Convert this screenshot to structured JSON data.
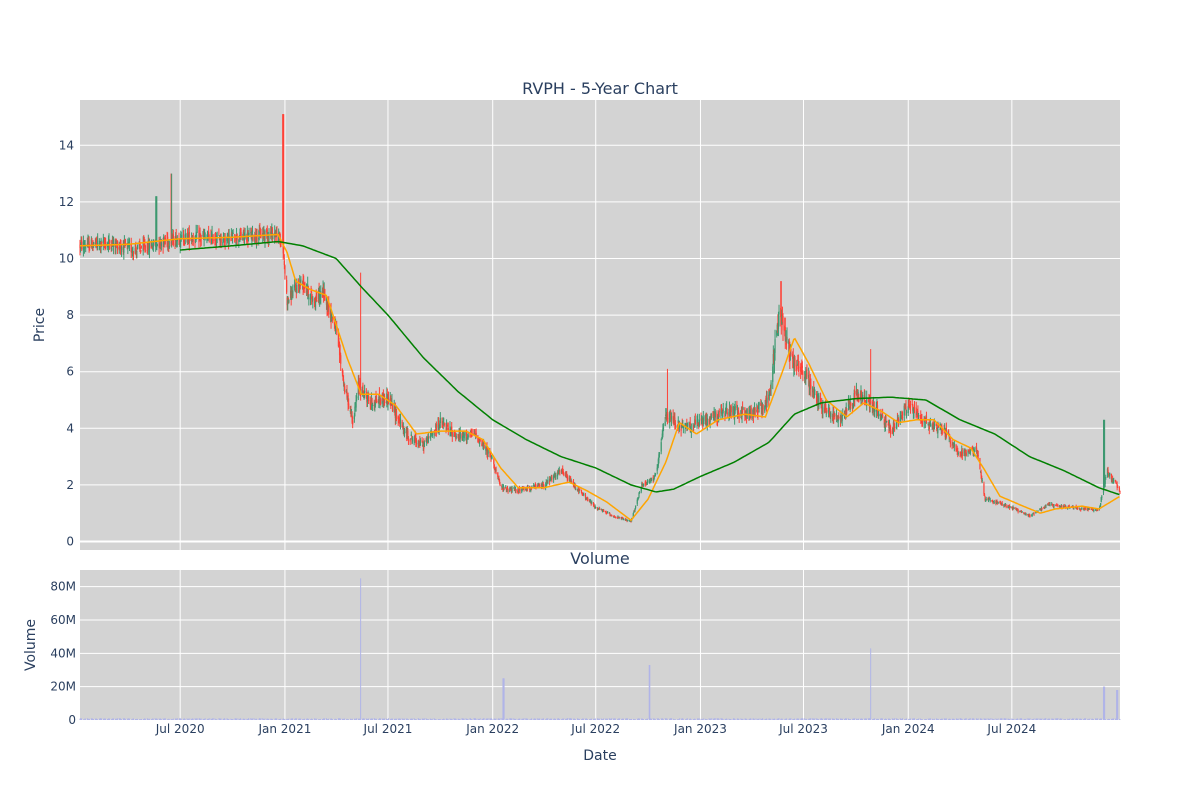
{
  "chart_data": [
    {
      "type": "candlestick",
      "title": "RVPH - 5-Year Chart",
      "ylabel": "Price",
      "ylim": [
        -0.3,
        15.6
      ],
      "yticks": [
        0,
        2,
        4,
        6,
        8,
        10,
        12,
        14
      ],
      "xlim": [
        "2020-01-07",
        "2025-01-07"
      ],
      "xticks": [
        {
          "date": "2020-07-01",
          "label": "Jul 2020"
        },
        {
          "date": "2021-01-01",
          "label": "Jan 2021"
        },
        {
          "date": "2021-07-01",
          "label": "Jul 2021"
        },
        {
          "date": "2022-01-01",
          "label": "Jan 2022"
        },
        {
          "date": "2022-07-01",
          "label": "Jul 2022"
        },
        {
          "date": "2023-01-01",
          "label": "Jan 2023"
        },
        {
          "date": "2023-07-01",
          "label": "Jul 2023"
        },
        {
          "date": "2024-01-01",
          "label": "Jan 2024"
        },
        {
          "date": "2024-07-01",
          "label": "Jul 2024"
        }
      ],
      "colors": {
        "up": "#3d9970",
        "down": "#ff4136",
        "ma_short": "#ffa500",
        "ma_long": "#008000",
        "plot_bg": "#d3d3d3",
        "grid": "#ffffff"
      },
      "price_path": [
        [
          "2020-01-07",
          10.45
        ],
        [
          "2020-03-01",
          10.55
        ],
        [
          "2020-04-15",
          10.3
        ],
        [
          "2020-06-01",
          10.6
        ],
        [
          "2020-07-15",
          10.75
        ],
        [
          "2020-09-15",
          10.7
        ],
        [
          "2020-11-01",
          10.8
        ],
        [
          "2020-12-15",
          10.9
        ],
        [
          "2020-12-28",
          10.5
        ],
        [
          "2021-01-05",
          8.5
        ],
        [
          "2021-01-15",
          8.8
        ],
        [
          "2021-02-01",
          9.2
        ],
        [
          "2021-02-20",
          8.5
        ],
        [
          "2021-03-10",
          8.8
        ],
        [
          "2021-04-01",
          7.5
        ],
        [
          "2021-04-15",
          5.5
        ],
        [
          "2021-05-01",
          4.2
        ],
        [
          "2021-05-10",
          5.5
        ],
        [
          "2021-06-01",
          4.9
        ],
        [
          "2021-07-01",
          5.1
        ],
        [
          "2021-08-01",
          3.8
        ],
        [
          "2021-09-01",
          3.4
        ],
        [
          "2021-10-01",
          4.2
        ],
        [
          "2021-11-01",
          3.7
        ],
        [
          "2021-12-01",
          3.8
        ],
        [
          "2022-01-01",
          2.9
        ],
        [
          "2022-01-15",
          1.9
        ],
        [
          "2022-02-15",
          1.8
        ],
        [
          "2022-04-01",
          2.0
        ],
        [
          "2022-05-01",
          2.5
        ],
        [
          "2022-06-01",
          1.8
        ],
        [
          "2022-07-01",
          1.2
        ],
        [
          "2022-08-01",
          0.9
        ],
        [
          "2022-09-01",
          0.7
        ],
        [
          "2022-09-20",
          2.0
        ],
        [
          "2022-10-15",
          2.3
        ],
        [
          "2022-11-01",
          4.5
        ],
        [
          "2022-12-01",
          4.0
        ],
        [
          "2023-01-01",
          4.2
        ],
        [
          "2023-02-01",
          4.5
        ],
        [
          "2023-03-01",
          4.6
        ],
        [
          "2023-04-01",
          4.5
        ],
        [
          "2023-05-01",
          5.0
        ],
        [
          "2023-05-20",
          8.2
        ],
        [
          "2023-06-10",
          6.5
        ],
        [
          "2023-07-01",
          6.0
        ],
        [
          "2023-08-01",
          4.8
        ],
        [
          "2023-09-01",
          4.3
        ],
        [
          "2023-10-01",
          5.2
        ],
        [
          "2023-11-01",
          4.8
        ],
        [
          "2023-12-01",
          3.9
        ],
        [
          "2024-01-01",
          4.8
        ],
        [
          "2024-02-01",
          4.2
        ],
        [
          "2024-03-01",
          4.0
        ],
        [
          "2024-04-01",
          3.1
        ],
        [
          "2024-05-01",
          3.2
        ],
        [
          "2024-05-15",
          1.5
        ],
        [
          "2024-06-01",
          1.4
        ],
        [
          "2024-07-01",
          1.2
        ],
        [
          "2024-08-01",
          0.9
        ],
        [
          "2024-09-01",
          1.3
        ],
        [
          "2024-10-15",
          1.2
        ],
        [
          "2024-12-01",
          1.1
        ],
        [
          "2024-12-15",
          2.5
        ],
        [
          "2025-01-07",
          1.8
        ]
      ],
      "spikes": [
        {
          "date": "2020-05-20",
          "high": 12.2
        },
        {
          "date": "2020-06-15",
          "high": 13.0
        },
        {
          "date": "2020-12-29",
          "high": 15.1
        },
        {
          "date": "2021-05-15",
          "high": 9.5
        },
        {
          "date": "2022-11-05",
          "high": 6.1
        },
        {
          "date": "2023-05-22",
          "high": 9.2
        },
        {
          "date": "2023-10-28",
          "high": 6.8
        },
        {
          "date": "2024-12-10",
          "high": 4.3
        }
      ],
      "ma_short_path": [
        [
          "2020-01-07",
          10.45
        ],
        [
          "2020-04-01",
          10.5
        ],
        [
          "2020-07-01",
          10.7
        ],
        [
          "2020-10-01",
          10.75
        ],
        [
          "2020-12-20",
          10.85
        ],
        [
          "2021-01-05",
          10.2
        ],
        [
          "2021-01-20",
          9.2
        ],
        [
          "2021-02-15",
          8.9
        ],
        [
          "2021-03-15",
          8.7
        ],
        [
          "2021-04-20",
          6.5
        ],
        [
          "2021-05-15",
          5.2
        ],
        [
          "2021-06-15",
          5.2
        ],
        [
          "2021-07-15",
          4.8
        ],
        [
          "2021-08-20",
          3.8
        ],
        [
          "2021-10-01",
          3.9
        ],
        [
          "2021-11-15",
          3.9
        ],
        [
          "2021-12-15",
          3.6
        ],
        [
          "2022-01-15",
          2.6
        ],
        [
          "2022-02-15",
          1.9
        ],
        [
          "2022-04-01",
          1.9
        ],
        [
          "2022-05-15",
          2.1
        ],
        [
          "2022-06-15",
          1.8
        ],
        [
          "2022-07-20",
          1.4
        ],
        [
          "2022-09-01",
          0.75
        ],
        [
          "2022-10-01",
          1.5
        ],
        [
          "2022-11-01",
          2.8
        ],
        [
          "2022-11-25",
          4.2
        ],
        [
          "2022-12-25",
          3.8
        ],
        [
          "2023-02-01",
          4.3
        ],
        [
          "2023-03-20",
          4.5
        ],
        [
          "2023-04-25",
          4.4
        ],
        [
          "2023-05-25",
          6.0
        ],
        [
          "2023-06-15",
          7.2
        ],
        [
          "2023-07-10",
          6.3
        ],
        [
          "2023-08-10",
          5.0
        ],
        [
          "2023-09-15",
          4.4
        ],
        [
          "2023-10-15",
          4.9
        ],
        [
          "2023-11-15",
          4.6
        ],
        [
          "2023-12-15",
          4.2
        ],
        [
          "2024-01-15",
          4.3
        ],
        [
          "2024-02-15",
          4.3
        ],
        [
          "2024-03-20",
          3.6
        ],
        [
          "2024-04-20",
          3.3
        ],
        [
          "2024-05-15",
          2.5
        ],
        [
          "2024-06-10",
          1.6
        ],
        [
          "2024-07-15",
          1.3
        ],
        [
          "2024-08-20",
          1.0
        ],
        [
          "2024-09-15",
          1.15
        ],
        [
          "2024-11-01",
          1.25
        ],
        [
          "2024-12-01",
          1.15
        ],
        [
          "2025-01-07",
          1.6
        ]
      ],
      "ma_long_path": [
        [
          "2020-07-01",
          10.3
        ],
        [
          "2020-10-01",
          10.45
        ],
        [
          "2020-12-20",
          10.6
        ],
        [
          "2021-02-01",
          10.45
        ],
        [
          "2021-04-01",
          10.0
        ],
        [
          "2021-05-15",
          9.0
        ],
        [
          "2021-07-01",
          8.0
        ],
        [
          "2021-09-01",
          6.5
        ],
        [
          "2021-11-01",
          5.3
        ],
        [
          "2022-01-01",
          4.3
        ],
        [
          "2022-03-01",
          3.6
        ],
        [
          "2022-05-01",
          3.0
        ],
        [
          "2022-07-01",
          2.6
        ],
        [
          "2022-09-01",
          2.0
        ],
        [
          "2022-10-15",
          1.75
        ],
        [
          "2022-11-15",
          1.85
        ],
        [
          "2023-01-01",
          2.3
        ],
        [
          "2023-03-01",
          2.8
        ],
        [
          "2023-05-01",
          3.5
        ],
        [
          "2023-06-15",
          4.5
        ],
        [
          "2023-08-01",
          4.9
        ],
        [
          "2023-10-01",
          5.05
        ],
        [
          "2023-12-01",
          5.1
        ],
        [
          "2024-02-01",
          5.0
        ],
        [
          "2024-04-01",
          4.3
        ],
        [
          "2024-06-01",
          3.8
        ],
        [
          "2024-08-01",
          3.0
        ],
        [
          "2024-10-01",
          2.5
        ],
        [
          "2024-12-01",
          1.9
        ],
        [
          "2025-01-07",
          1.65
        ]
      ]
    },
    {
      "type": "bar",
      "title": "Volume",
      "xlabel": "Date",
      "ylabel": "Volume",
      "ylim": [
        0,
        90
      ],
      "yticks": [
        {
          "value": 0,
          "label": "0"
        },
        {
          "value": 20,
          "label": "20M"
        },
        {
          "value": 40,
          "label": "40M"
        },
        {
          "value": 60,
          "label": "60M"
        },
        {
          "value": 80,
          "label": "80M"
        }
      ],
      "unit": "M",
      "spikes": [
        {
          "date": "2021-05-15",
          "value": 85
        },
        {
          "date": "2022-01-20",
          "value": 25
        },
        {
          "date": "2022-10-03",
          "value": 33
        },
        {
          "date": "2023-10-28",
          "value": 43
        },
        {
          "date": "2024-12-10",
          "value": 20
        },
        {
          "date": "2025-01-02",
          "value": 18
        }
      ]
    }
  ]
}
